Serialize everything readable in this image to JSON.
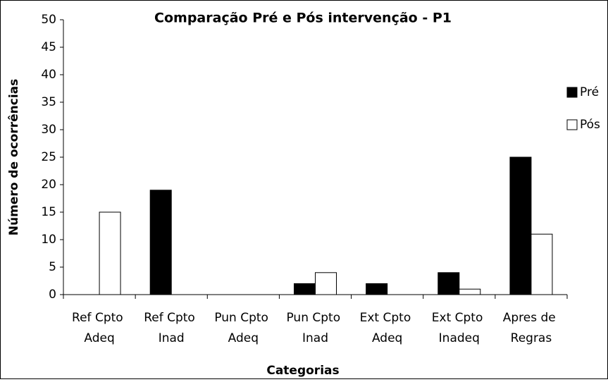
{
  "chart_data": {
    "type": "bar",
    "title": "Comparação Pré e Pós intervenção - P1",
    "x_label": "Categorias",
    "y_label": "Número de ocorrências",
    "categories": [
      "Ref Cpto Adeq",
      "Ref Cpto Inad",
      "Pun Cpto Adeq",
      "Pun Cpto Inad",
      "Ext Cpto Adeq",
      "Ext Cpto Inadeq",
      "Apres de Regras"
    ],
    "series": [
      {
        "name": "Pré",
        "color": "#000000",
        "values": [
          0,
          19,
          0,
          2,
          2,
          4,
          25
        ]
      },
      {
        "name": "Pós",
        "color": "#ffffff",
        "values": [
          15,
          0,
          0,
          4,
          0,
          1,
          11
        ]
      }
    ],
    "ylim": [
      0,
      50
    ],
    "yticks": [
      0,
      5,
      10,
      15,
      20,
      25,
      30,
      35,
      40,
      45,
      50
    ],
    "grid": false,
    "legend": "right"
  }
}
